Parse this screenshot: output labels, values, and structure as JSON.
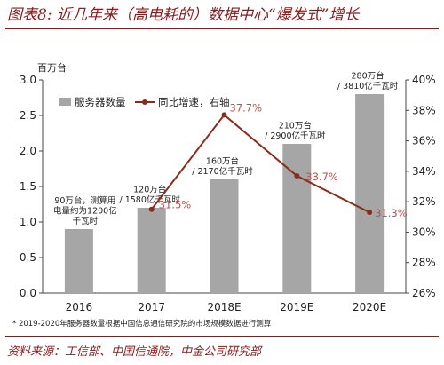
{
  "title": "图表8: 近几年来（高电耗的）数据中心“爆发式”增长",
  "footnote": "* 2019-2020年服务器数量根据中国信息通信研究院的市场规模数据进行测算",
  "source": "资料来源：工信部、中国信通院，中金公司研究部",
  "colors": {
    "bar": "#a6a6a6",
    "line": "#8b2b1a",
    "label": "#c0504d",
    "title": "#8b1a1a"
  },
  "chart_data": {
    "type": "bar",
    "categories": [
      "2016",
      "2017",
      "2018E",
      "2019E",
      "2020E"
    ],
    "ylabel": "百万台",
    "ylim": [
      0,
      3.0
    ],
    "y_ticks": [
      "0.0",
      "0.5",
      "1.0",
      "1.5",
      "2.0",
      "2.5",
      "3.0"
    ],
    "y2lim": [
      26,
      40
    ],
    "y2_ticks": [
      "26%",
      "28%",
      "30%",
      "32%",
      "34%",
      "36%",
      "38%",
      "40%"
    ],
    "legend_position": "top-left",
    "series": [
      {
        "name": "服务器数量",
        "type": "bar",
        "axis": "left",
        "values": [
          0.9,
          1.2,
          1.6,
          2.1,
          2.8
        ],
        "annotations": [
          [
            "90万台，测算用",
            "电量约为1200亿",
            "千瓦时"
          ],
          [
            "120万台",
            "/ 1580亿千瓦时"
          ],
          [
            "160万台",
            "/ 2170亿千瓦时"
          ],
          [
            "210万台",
            "/ 2900亿千瓦时"
          ],
          [
            "280万台",
            "/ 3810亿千瓦时"
          ]
        ]
      },
      {
        "name": "同比增速，右轴",
        "type": "line",
        "axis": "right",
        "x": [
          "2017",
          "2018E",
          "2019E",
          "2020E"
        ],
        "values": [
          31.5,
          37.7,
          33.7,
          31.3
        ],
        "labels": [
          "31.5%",
          "37.7%",
          "33.7%",
          "31.3%"
        ]
      }
    ]
  }
}
